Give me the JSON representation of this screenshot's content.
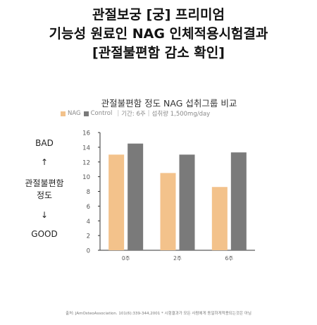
{
  "headline": {
    "line1": "관절보궁 [궁] 프리미엄",
    "line2": "기능성 원료인 NAG 인체적용시험결과",
    "line3": "[관절불편함 감소 확인]"
  },
  "side_labels": {
    "bad": "BAD",
    "up_arrow": "↑",
    "metric_line1": "관절불편함",
    "metric_line2": "정도",
    "down_arrow": "↓",
    "good": "GOOD"
  },
  "legend": {
    "nag": "NAG",
    "control": "Control",
    "period": "기간: 6주",
    "dose": "섭취량 1,500mg/day"
  },
  "footnote": "출처: JAmOsteoAssociation. 101(6):339-344,2001 * 시험결과가 모든 사람에게 동일하게적용되는것은 아님",
  "colors": {
    "nag": "#f3c28b",
    "control": "#7a7a7a",
    "axis": "#333333",
    "tick_text": "#555555"
  },
  "chart_data": {
    "type": "bar",
    "title": "관절불편함 정도 NAG 섭취그룹 비교",
    "categories": [
      "0주",
      "2주",
      "6주"
    ],
    "series": [
      {
        "name": "NAG",
        "values": [
          13.0,
          10.5,
          8.6
        ]
      },
      {
        "name": "Control",
        "values": [
          14.5,
          13.0,
          13.3
        ]
      }
    ],
    "ylim": [
      0,
      16
    ],
    "yticks": [
      0,
      2,
      4,
      6,
      8,
      10,
      12,
      14,
      16
    ],
    "xlabel": "",
    "ylabel": "",
    "grid": false,
    "legend_position": "top-left"
  }
}
